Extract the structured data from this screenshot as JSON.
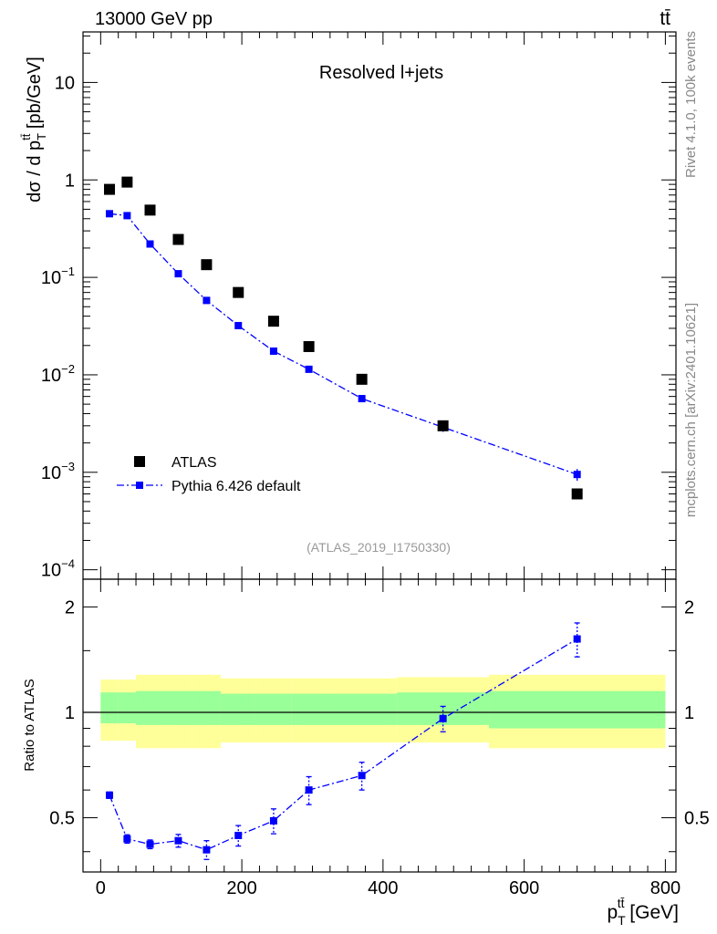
{
  "header": {
    "left": "13000 GeV pp",
    "right": "tt̄",
    "side_top": "Rivet 4.1.0,  100k events",
    "side_bottom": "mcplots.cern.ch [arXiv:2401.10621]"
  },
  "colors": {
    "data": "#000000",
    "mc": "#0000ff",
    "band_inner": "#99ff99",
    "band_outer": "#ffff99",
    "watermark": "#999999",
    "side_text": "#888888"
  },
  "chart_data": [
    {
      "type": "scatter",
      "panel": "main",
      "title": "Resolved l+jets",
      "watermark": "(ATLAS_2019_I1750330)",
      "xlabel": "p_T^{tt̄} [GeV]",
      "ylabel": "dσ / d p_T^{tt̄} [pb/GeV]",
      "yscale": "log",
      "xlim": [
        -25,
        815
      ],
      "ylim": [
        8e-05,
        33
      ],
      "yticks": [
        {
          "v": 0.0001,
          "base": "10",
          "exp": "−4"
        },
        {
          "v": 0.001,
          "base": "10",
          "exp": "−3"
        },
        {
          "v": 0.01,
          "base": "10",
          "exp": "−2"
        },
        {
          "v": 0.1,
          "base": "10",
          "exp": "−1"
        },
        {
          "v": 1,
          "base": "1",
          "exp": ""
        },
        {
          "v": 10,
          "base": "10",
          "exp": ""
        }
      ],
      "legend": {
        "position": "bottom-left",
        "data_label": "ATLAS",
        "mc_label": "Pythia 6.426 default"
      },
      "series": [
        {
          "name": "ATLAS",
          "marker": "square",
          "x": [
            12.5,
            37.5,
            70,
            110,
            150,
            195,
            245,
            295,
            370,
            485,
            675
          ],
          "y": [
            0.8,
            0.95,
            0.49,
            0.245,
            0.135,
            0.07,
            0.0355,
            0.0195,
            0.009,
            0.003,
            0.0006
          ]
        },
        {
          "name": "Pythia 6.426 default",
          "marker": "small-square",
          "line": "dash-dot",
          "x": [
            12.5,
            37.5,
            70,
            110,
            150,
            195,
            245,
            295,
            370,
            485,
            675
          ],
          "y": [
            0.45,
            0.43,
            0.22,
            0.109,
            0.058,
            0.032,
            0.0175,
            0.0114,
            0.0057,
            0.0029,
            0.00095
          ],
          "yerr": [
            0,
            0,
            0,
            0,
            0,
            0,
            0,
            0,
            0,
            0.0003,
            0.00013
          ]
        }
      ]
    },
    {
      "type": "line",
      "panel": "ratio",
      "ylabel": "Ratio to ATLAS",
      "xlabel": "p_T^{tt̄} [GeV]",
      "xlim": [
        -25,
        815
      ],
      "ylim": [
        0.35,
        2.4
      ],
      "yscale": "log",
      "yticks": [
        {
          "v": 0.5,
          "label": "0.5"
        },
        {
          "v": 1,
          "label": "1"
        },
        {
          "v": 2,
          "label": "2"
        }
      ],
      "xticks": [
        0,
        200,
        400,
        600,
        800
      ],
      "bands": {
        "edges": [
          0,
          25,
          50,
          90,
          130,
          170,
          220,
          270,
          320,
          420,
          550,
          800
        ],
        "inner_low": [
          0.93,
          0.93,
          0.92,
          0.92,
          0.92,
          0.92,
          0.92,
          0.92,
          0.92,
          0.92,
          0.9
        ],
        "inner_high": [
          1.14,
          1.14,
          1.15,
          1.15,
          1.15,
          1.13,
          1.13,
          1.13,
          1.13,
          1.14,
          1.15
        ],
        "outer_low": [
          0.83,
          0.83,
          0.79,
          0.79,
          0.79,
          0.82,
          0.82,
          0.82,
          0.82,
          0.82,
          0.79
        ],
        "outer_high": [
          1.24,
          1.24,
          1.28,
          1.28,
          1.28,
          1.25,
          1.25,
          1.25,
          1.25,
          1.26,
          1.28
        ]
      },
      "series": [
        {
          "name": "Pythia 6.426 default / ATLAS",
          "x": [
            12.5,
            37.5,
            70,
            110,
            150,
            195,
            245,
            295,
            370,
            485,
            675
          ],
          "y": [
            0.58,
            0.435,
            0.42,
            0.43,
            0.405,
            0.445,
            0.49,
            0.6,
            0.66,
            0.96,
            1.62
          ],
          "yerr": [
            0.012,
            0.012,
            0.012,
            0.018,
            0.025,
            0.03,
            0.04,
            0.055,
            0.06,
            0.08,
            0.18
          ]
        }
      ]
    }
  ]
}
